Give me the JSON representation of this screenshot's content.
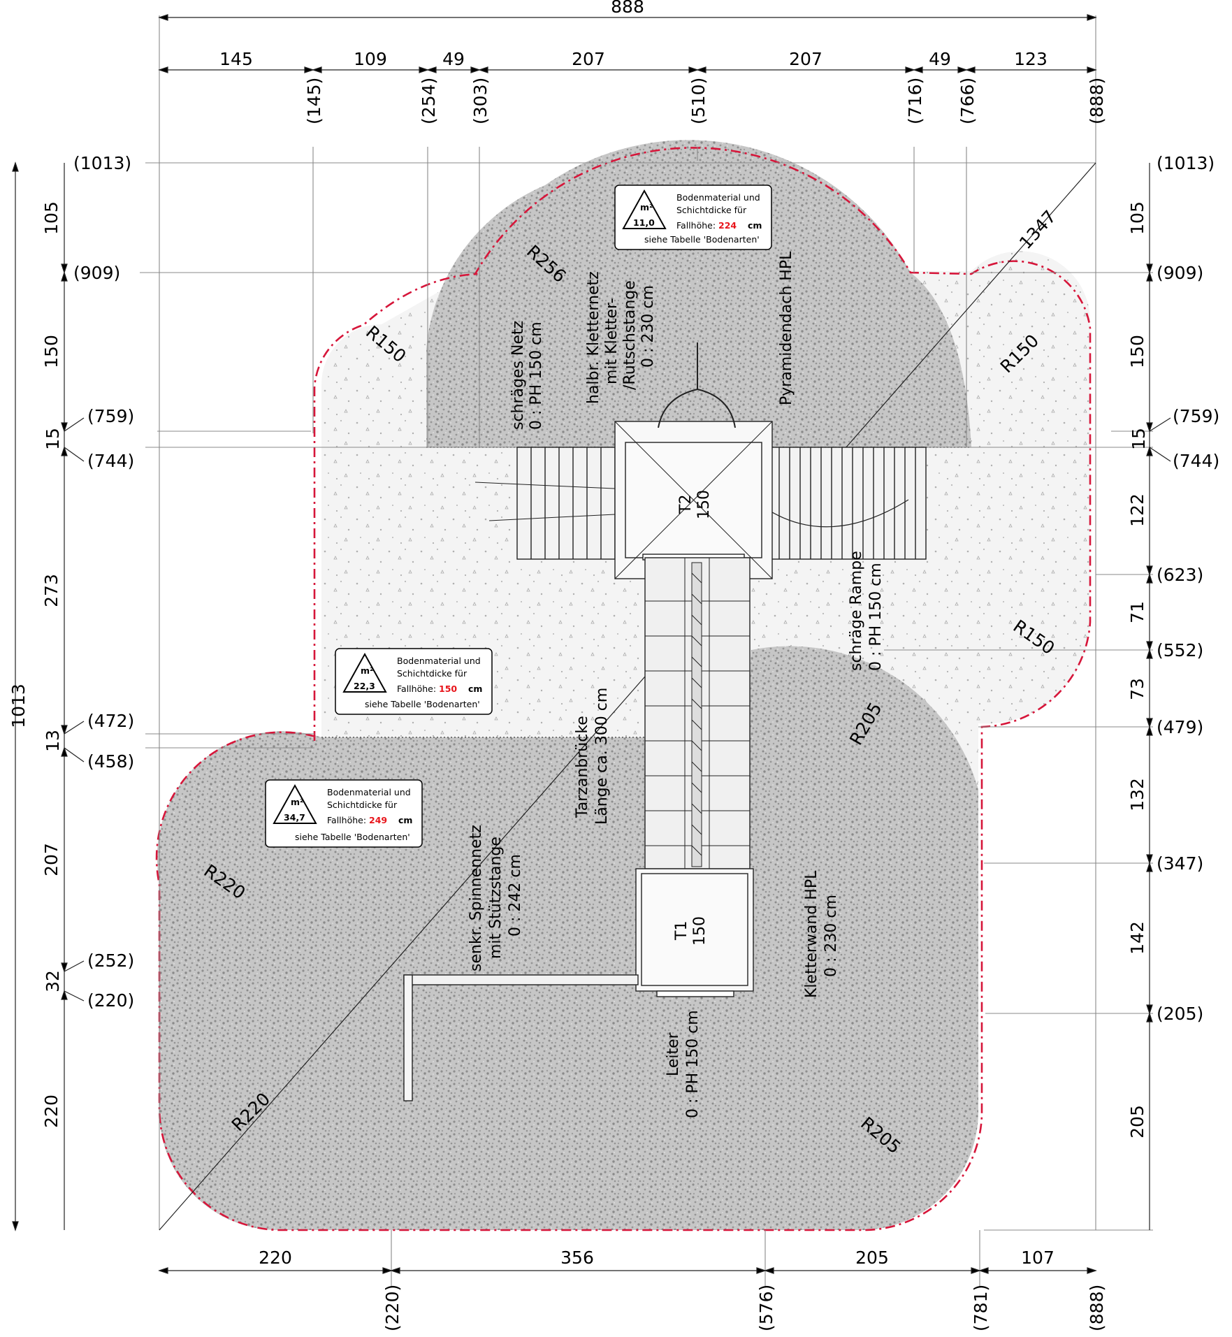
{
  "top_dims": {
    "overall": "888",
    "segments": [
      "145",
      "109",
      "49",
      "207",
      "207",
      "49",
      "123"
    ],
    "refs": [
      "(145)",
      "(254)",
      "(303)",
      "(510)",
      "(716)",
      "(766)",
      "(888)"
    ]
  },
  "bottom_dims": {
    "segments": [
      "220",
      "356",
      "205",
      "107"
    ],
    "refs": [
      "(220)",
      "(576)",
      "(781)",
      "(888)"
    ]
  },
  "left_dims": {
    "overall": "1013",
    "segments": [
      "105",
      "150",
      "15",
      "273",
      "13",
      "207",
      "32",
      "220"
    ],
    "refs": [
      "(1013)",
      "(909)",
      "(759)",
      "(744)",
      "(472)",
      "(458)",
      "(252)",
      "(220)"
    ]
  },
  "right_dims": {
    "segments": [
      "105",
      "150",
      "15",
      "122",
      "71",
      "73",
      "132",
      "142",
      "205"
    ],
    "refs": [
      "(1013)",
      "(909)",
      "(759)",
      "(744)",
      "(623)",
      "(552)",
      "(479)",
      "(347)",
      "(205)"
    ]
  },
  "radii": {
    "r256": "R256",
    "r150_left": "R150",
    "r150_right": "R150",
    "r150_lower": "R150",
    "r205_mid": "R205",
    "r205_bottom": "R205",
    "r220_left": "R220",
    "r220_bottom": "R220",
    "diag": "1347"
  },
  "labels": {
    "schraeges_netz": [
      "schräges Netz",
      "0 : PH 150 cm"
    ],
    "kletternetz": [
      "halbr. Kletternetz",
      "mit Kletter-",
      "/Rutschstange",
      "0 : 230 cm"
    ],
    "pyramidendach": [
      "Pyramidendach HPL"
    ],
    "rampe": [
      "schräge Rampe",
      "0 : PH 150 cm"
    ],
    "tarzan": [
      "Tarzanbrücke",
      "Länge ca. 300 cm"
    ],
    "spinnennetz": [
      "senkr. Spinnennetz",
      "mit Stützstange",
      "0 : 242 cm"
    ],
    "kletterwand": [
      "Kletterwand HPL",
      "0 : 230 cm"
    ],
    "leiter": [
      "Leiter",
      "0 : PH 150 cm"
    ],
    "t2": [
      "T2",
      "150"
    ],
    "t1": [
      "T1",
      "150"
    ]
  },
  "info_boxes": [
    {
      "area": "11,0",
      "unit": "m²",
      "line1": "Bodenmaterial und",
      "line2": "Schichtdicke für",
      "fall_label": "Fallhöhe:",
      "fall_value": "224",
      "fall_unit": "cm",
      "ref": "siehe Tabelle 'Bodenarten'"
    },
    {
      "area": "22,3",
      "unit": "m²",
      "line1": "Bodenmaterial und",
      "line2": "Schichtdicke für",
      "fall_label": "Fallhöhe:",
      "fall_value": "150",
      "fall_unit": "cm",
      "ref": "siehe Tabelle 'Bodenarten'"
    },
    {
      "area": "34,7",
      "unit": "m²",
      "line1": "Bodenmaterial und",
      "line2": "Schichtdicke für",
      "fall_label": "Fallhöhe:",
      "fall_value": "249",
      "fall_unit": "cm",
      "ref": "siehe Tabelle 'Bodenarten'"
    }
  ],
  "colors": {
    "boundary": "#d6163a",
    "fall_value": "#e8151b",
    "dense_fill": "#b9b9b9",
    "light_fill": "#f1f1f1"
  }
}
